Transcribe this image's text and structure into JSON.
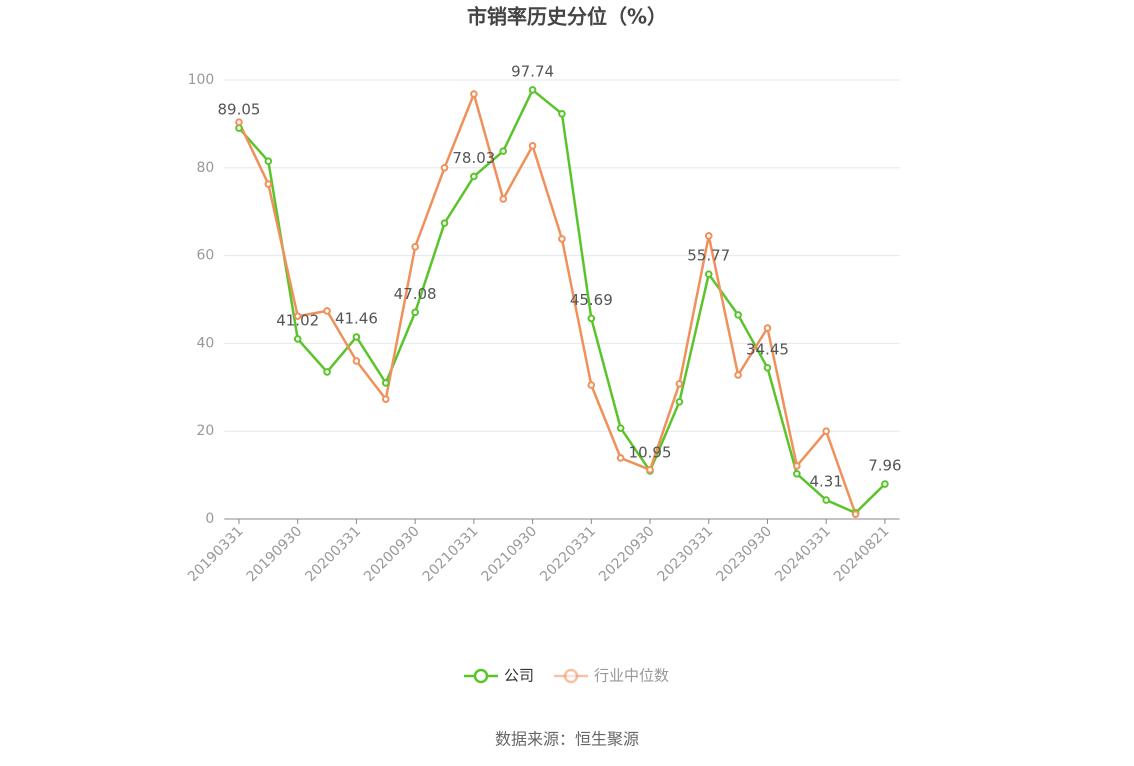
{
  "chart_data": {
    "type": "line",
    "title": "市销率历史分位（%）",
    "categories": [
      "20190331",
      null,
      "20190930",
      null,
      "20200331",
      null,
      "20200930",
      null,
      "20210331",
      null,
      "20210930",
      null,
      "20220331",
      null,
      "20220930",
      null,
      "20230331",
      null,
      "20230930",
      null,
      "20240331",
      null,
      "20240821"
    ],
    "series": [
      {
        "name": "公司",
        "color": "#5ac42a",
        "values": [
          89.05,
          81.5,
          41.02,
          33.5,
          41.46,
          31.0,
          47.08,
          67.4,
          78.03,
          83.8,
          97.74,
          92.3,
          45.69,
          20.7,
          10.95,
          26.7,
          55.77,
          46.5,
          34.45,
          10.3,
          4.31,
          1.4,
          7.96
        ]
      },
      {
        "name": "行业中位数",
        "color": "#f0905a",
        "values": [
          90.4,
          76.3,
          46.2,
          47.4,
          36.0,
          27.3,
          62.0,
          80.0,
          96.8,
          72.9,
          85.0,
          63.8,
          30.5,
          13.9,
          11.2,
          30.8,
          64.5,
          32.8,
          43.5,
          12.1,
          20.0,
          1.1,
          null
        ]
      }
    ],
    "ylim": [
      0,
      100
    ],
    "yticks": [
      0,
      20,
      40,
      60,
      80,
      100
    ],
    "grid": true,
    "legend": "bottom",
    "source": "数据来源：恒生聚源"
  }
}
